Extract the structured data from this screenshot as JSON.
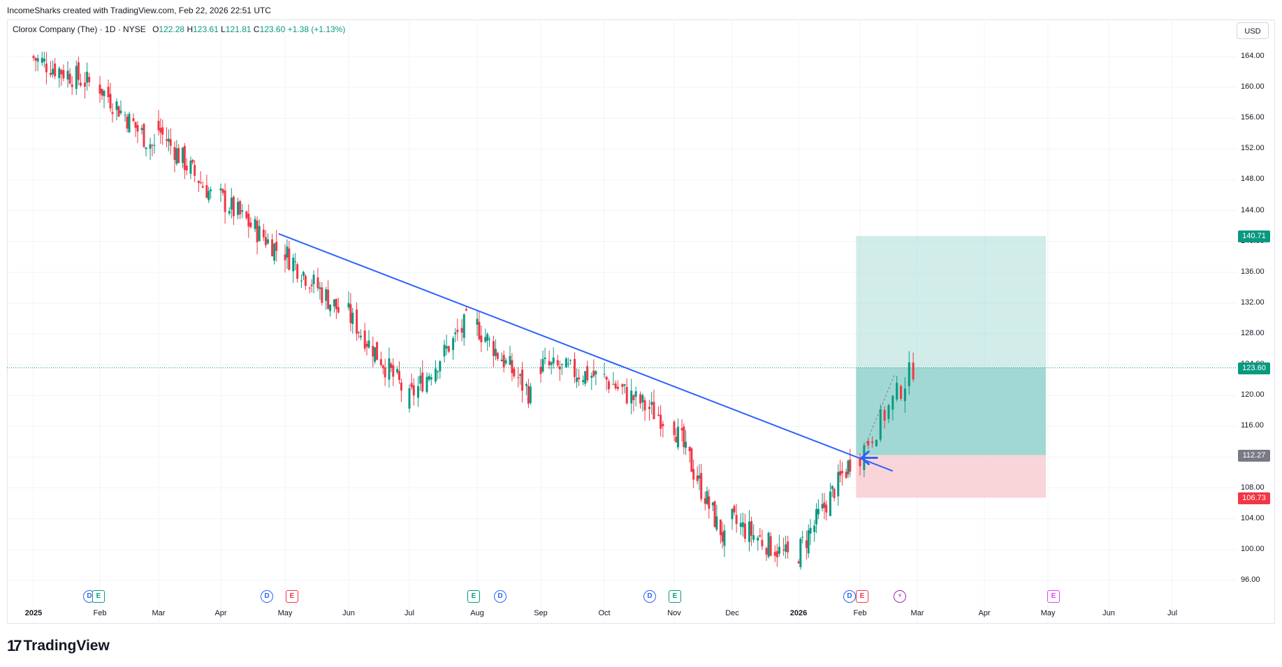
{
  "header": {
    "attribution": "IncomeSharks created with TradingView.com, Feb 22, 2026 22:51 UTC"
  },
  "legend": {
    "symbol": "Clorox Company (The) · 1D · NYSE",
    "open_label": "O",
    "open": "122.28",
    "high_label": "H",
    "high": "123.61",
    "low_label": "L",
    "low": "121.81",
    "close_label": "C",
    "close": "123.60",
    "change": "+1.38 (+1.13%)"
  },
  "currency_button": "USD",
  "y_ticks": [
    "164.00",
    "160.00",
    "156.00",
    "152.00",
    "148.00",
    "144.00",
    "140.00",
    "136.00",
    "132.00",
    "128.00",
    "124.00",
    "120.00",
    "116.00",
    "112.00",
    "108.00",
    "104.00",
    "100.00",
    "96.00"
  ],
  "price_tags": {
    "target": {
      "label": "140.71",
      "color": "#089981"
    },
    "last": {
      "label": "123.60",
      "color": "#089981"
    },
    "entry": {
      "label": "112.27",
      "color": "#787b86"
    },
    "stop": {
      "label": "106.73",
      "color": "#f23645"
    }
  },
  "x_labels": [
    {
      "text": "2025",
      "bold": true
    },
    {
      "text": "Feb",
      "bold": false
    },
    {
      "text": "Mar",
      "bold": false
    },
    {
      "text": "Apr",
      "bold": false
    },
    {
      "text": "May",
      "bold": false
    },
    {
      "text": "Jun",
      "bold": false
    },
    {
      "text": "Jul",
      "bold": false
    },
    {
      "text": "Aug",
      "bold": false
    },
    {
      "text": "Sep",
      "bold": false
    },
    {
      "text": "Oct",
      "bold": false
    },
    {
      "text": "Nov",
      "bold": false
    },
    {
      "text": "Dec",
      "bold": false
    },
    {
      "text": "2026",
      "bold": true
    },
    {
      "text": "Feb",
      "bold": false
    },
    {
      "text": "Mar",
      "bold": false
    },
    {
      "text": "Apr",
      "bold": false
    },
    {
      "text": "May",
      "bold": false
    },
    {
      "text": "Jun",
      "bold": false
    },
    {
      "text": "Jul",
      "bold": false
    }
  ],
  "events": [
    {
      "type": "div",
      "glyph": "D"
    },
    {
      "type": "earn-g",
      "glyph": "E"
    },
    {
      "type": "div",
      "glyph": "D"
    },
    {
      "type": "earn-r",
      "glyph": "E"
    },
    {
      "type": "earn-g",
      "glyph": "E"
    },
    {
      "type": "div",
      "glyph": "D"
    },
    {
      "type": "div",
      "glyph": "D"
    },
    {
      "type": "earn-g",
      "glyph": "E"
    },
    {
      "type": "div",
      "glyph": "D"
    },
    {
      "type": "earn-r",
      "glyph": "E"
    },
    {
      "type": "split",
      "glyph": "⚡"
    },
    {
      "type": "earn-p",
      "glyph": "E"
    }
  ],
  "logo_text": "TradingView",
  "colors": {
    "up": "#089981",
    "down": "#f23645",
    "trendline": "#2962ff",
    "profit_zone": "#b2dfdb",
    "profit_zone_active": "#80cbc4",
    "loss_zone": "#f8c9cf"
  },
  "chart_data": {
    "type": "candlestick",
    "ylim": [
      94,
      167
    ],
    "trendline": {
      "from": {
        "date": "2025-04-28",
        "price": 141.0
      },
      "to": {
        "date": "2026-02-17",
        "price": 110.2
      }
    },
    "position": {
      "entry": 112.27,
      "target": 140.71,
      "stop": 106.73,
      "start": "2026-01-30",
      "end": "2026-04-30"
    },
    "last_price": 123.6,
    "monthly_path": [
      {
        "month": "2025-01",
        "open": 164.0,
        "close": 160.5
      },
      {
        "month": "2025-02",
        "open": 160.5,
        "close": 152.0
      },
      {
        "month": "2025-03",
        "open": 155.0,
        "close": 146.0
      },
      {
        "month": "2025-04",
        "open": 146.0,
        "close": 139.0
      },
      {
        "month": "2025-05",
        "open": 139.0,
        "close": 131.0
      },
      {
        "month": "2025-06",
        "open": 131.0,
        "close": 121.0
      },
      {
        "month": "2025-07",
        "open": 119.0,
        "close": 129.5
      },
      {
        "month": "2025-08",
        "open": 129.5,
        "close": 120.0
      },
      {
        "month": "2025-09",
        "open": 124.0,
        "close": 122.5
      },
      {
        "month": "2025-10",
        "open": 122.5,
        "close": 117.0
      },
      {
        "month": "2025-11",
        "open": 117.0,
        "close": 101.0
      },
      {
        "month": "2025-12",
        "open": 104.0,
        "close": 99.0
      },
      {
        "month": "2026-01",
        "open": 99.0,
        "close": 111.5
      },
      {
        "month": "2026-02",
        "open": 111.5,
        "close": 123.6
      }
    ]
  }
}
